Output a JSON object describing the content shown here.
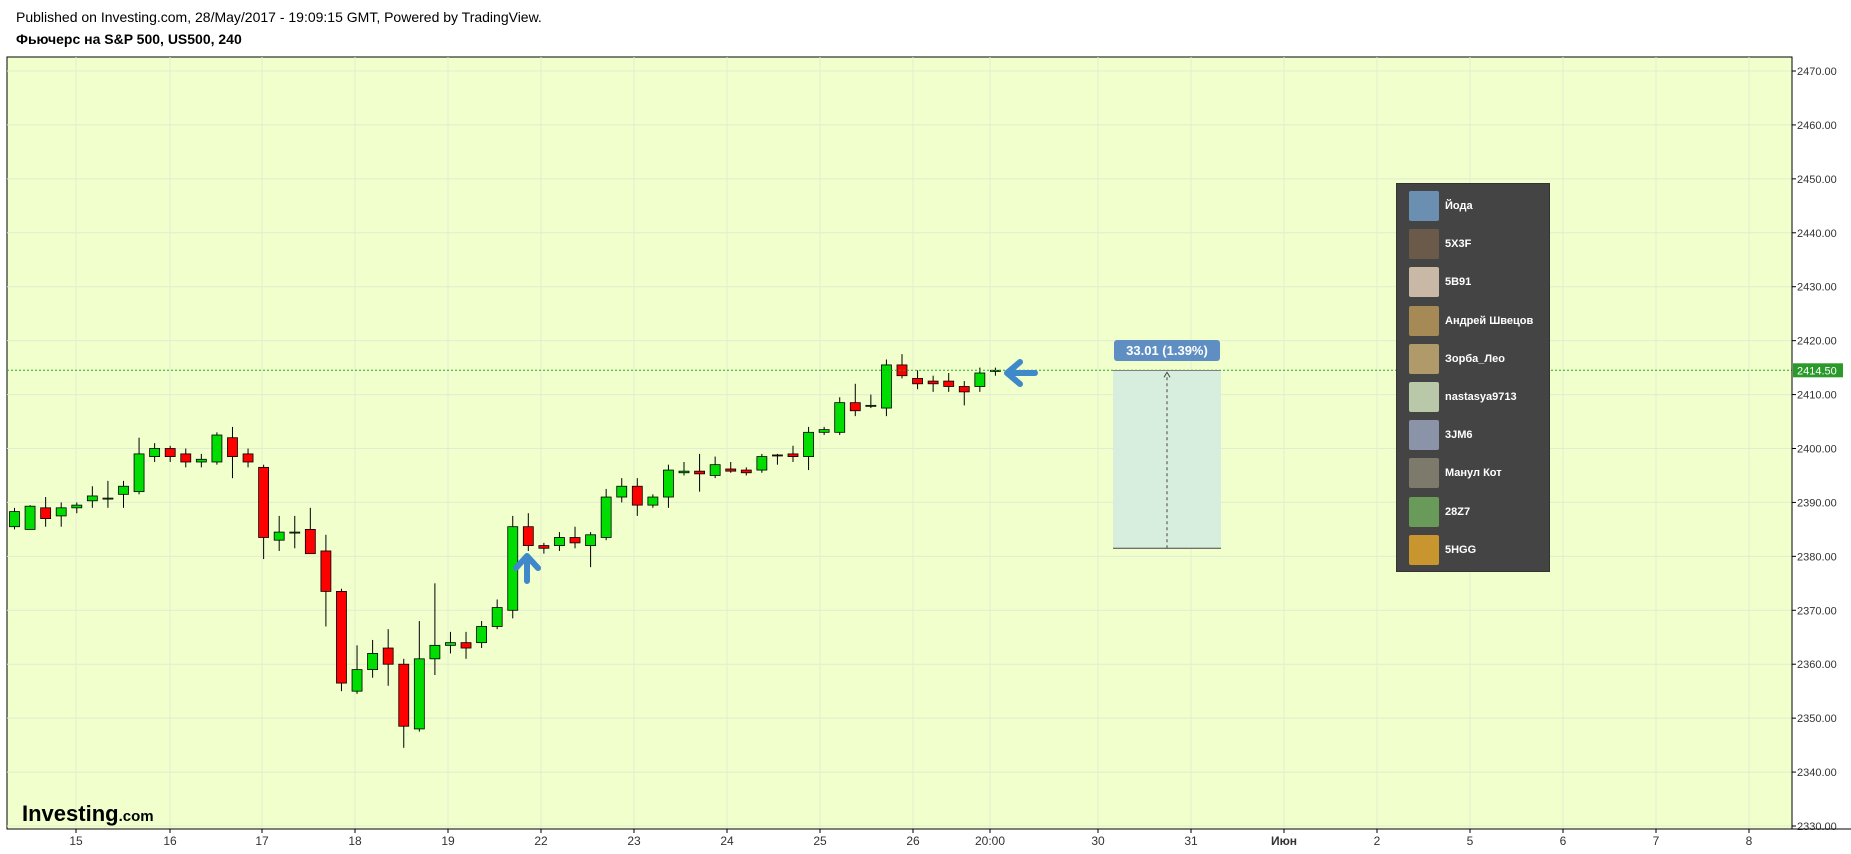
{
  "header": {
    "published": "Published on Investing.com, 28/May/2017 - 19:09:15 GMT, Powered by TradingView.",
    "title": "Фьючерс на S&P 500, US500, 240"
  },
  "colors": {
    "background": "#f0ffcc",
    "up": "#00dd00",
    "down": "#ff0000",
    "price_line": "#22aa22",
    "price_label_bg": "#2a9a2a",
    "measure_fill": "#d7eedf",
    "measure_label_bg": "#5f8fc2",
    "arrow": "#3f88c9"
  },
  "chart_data": {
    "type": "candlestick",
    "y_axis": {
      "ylim": [
        2327,
        2472
      ],
      "ticks": [
        "2470.00",
        "2460.00",
        "2450.00",
        "2440.00",
        "2430.00",
        "2420.00",
        "2410.00",
        "2400.00",
        "2390.00",
        "2380.00",
        "2370.00",
        "2360.00",
        "2350.00",
        "2340.00",
        "2330.00"
      ]
    },
    "x_axis": {
      "ticks": [
        "15",
        "16",
        "17",
        "18",
        "19",
        "22",
        "23",
        "24",
        "25",
        "26",
        "20:00",
        "30",
        "31",
        "Июн",
        "2",
        "5",
        "6",
        "7",
        "8"
      ]
    },
    "current_price": 2414.5,
    "current_price_label": "2414.50",
    "candles": [
      {
        "o": 2385.5,
        "h": 2389.0,
        "l": 2385.0,
        "c": 2388.3
      },
      {
        "o": 2385.0,
        "h": 2389.5,
        "l": 2385.0,
        "c": 2389.3
      },
      {
        "o": 2389.0,
        "h": 2391.0,
        "l": 2385.5,
        "c": 2387.0
      },
      {
        "o": 2387.5,
        "h": 2390.0,
        "l": 2385.5,
        "c": 2389.0
      },
      {
        "o": 2389.0,
        "h": 2390.0,
        "l": 2388.0,
        "c": 2389.5
      },
      {
        "o": 2390.3,
        "h": 2393.0,
        "l": 2389.0,
        "c": 2391.2
      },
      {
        "o": 2390.8,
        "h": 2394.0,
        "l": 2389.0,
        "c": 2390.8
      },
      {
        "o": 2391.5,
        "h": 2394.0,
        "l": 2389.0,
        "c": 2393.0
      },
      {
        "o": 2392.0,
        "h": 2402.0,
        "l": 2391.5,
        "c": 2399.0
      },
      {
        "o": 2398.5,
        "h": 2401.0,
        "l": 2397.5,
        "c": 2400.0
      },
      {
        "o": 2400.0,
        "h": 2400.5,
        "l": 2397.5,
        "c": 2398.5
      },
      {
        "o": 2399.0,
        "h": 2400.0,
        "l": 2396.5,
        "c": 2397.5
      },
      {
        "o": 2397.5,
        "h": 2399.0,
        "l": 2396.5,
        "c": 2398.0
      },
      {
        "o": 2397.5,
        "h": 2403.0,
        "l": 2397.0,
        "c": 2402.5
      },
      {
        "o": 2402.0,
        "h": 2404.0,
        "l": 2394.5,
        "c": 2398.5
      },
      {
        "o": 2399.0,
        "h": 2400.0,
        "l": 2396.5,
        "c": 2397.5
      },
      {
        "o": 2396.5,
        "h": 2397.0,
        "l": 2379.5,
        "c": 2383.5
      },
      {
        "o": 2383.0,
        "h": 2387.5,
        "l": 2381.0,
        "c": 2384.5
      },
      {
        "o": 2384.5,
        "h": 2387.5,
        "l": 2381.5,
        "c": 2384.5
      },
      {
        "o": 2385.0,
        "h": 2389.0,
        "l": 2381.0,
        "c": 2380.5
      },
      {
        "o": 2381.0,
        "h": 2384.0,
        "l": 2367.0,
        "c": 2373.5
      },
      {
        "o": 2373.5,
        "h": 2374.0,
        "l": 2355.0,
        "c": 2356.5
      },
      {
        "o": 2355.0,
        "h": 2363.5,
        "l": 2354.5,
        "c": 2359.0
      },
      {
        "o": 2359.0,
        "h": 2364.5,
        "l": 2357.5,
        "c": 2362.0
      },
      {
        "o": 2363.0,
        "h": 2366.5,
        "l": 2356.0,
        "c": 2360.0
      },
      {
        "o": 2360.0,
        "h": 2361.0,
        "l": 2344.5,
        "c": 2348.5
      },
      {
        "o": 2348.0,
        "h": 2368.0,
        "l": 2347.5,
        "c": 2361.0
      },
      {
        "o": 2361.0,
        "h": 2375.0,
        "l": 2358.0,
        "c": 2363.5
      },
      {
        "o": 2363.5,
        "h": 2366.0,
        "l": 2362.0,
        "c": 2364.0
      },
      {
        "o": 2364.0,
        "h": 2366.0,
        "l": 2361.0,
        "c": 2363.0
      },
      {
        "o": 2364.0,
        "h": 2368.0,
        "l": 2363.0,
        "c": 2367.0
      },
      {
        "o": 2367.0,
        "h": 2372.0,
        "l": 2366.5,
        "c": 2370.5
      },
      {
        "o": 2370.0,
        "h": 2387.5,
        "l": 2368.5,
        "c": 2385.5
      },
      {
        "o": 2385.5,
        "h": 2388.0,
        "l": 2381.0,
        "c": 2382.0
      },
      {
        "o": 2382.0,
        "h": 2382.5,
        "l": 2380.5,
        "c": 2381.5
      },
      {
        "o": 2382.0,
        "h": 2384.5,
        "l": 2381.0,
        "c": 2383.5
      },
      {
        "o": 2383.5,
        "h": 2385.5,
        "l": 2381.5,
        "c": 2382.5
      },
      {
        "o": 2382.0,
        "h": 2384.5,
        "l": 2378.0,
        "c": 2384.0
      },
      {
        "o": 2383.5,
        "h": 2392.5,
        "l": 2383.0,
        "c": 2391.0
      },
      {
        "o": 2391.0,
        "h": 2394.5,
        "l": 2390.0,
        "c": 2393.0
      },
      {
        "o": 2393.0,
        "h": 2394.5,
        "l": 2387.5,
        "c": 2389.5
      },
      {
        "o": 2389.5,
        "h": 2391.5,
        "l": 2389.0,
        "c": 2391.0
      },
      {
        "o": 2391.0,
        "h": 2397.0,
        "l": 2389.0,
        "c": 2396.0
      },
      {
        "o": 2395.5,
        "h": 2397.5,
        "l": 2395.0,
        "c": 2395.8
      },
      {
        "o": 2395.8,
        "h": 2399.0,
        "l": 2392.0,
        "c": 2395.3
      },
      {
        "o": 2395.0,
        "h": 2398.5,
        "l": 2394.5,
        "c": 2397.0
      },
      {
        "o": 2396.2,
        "h": 2397.5,
        "l": 2395.5,
        "c": 2395.8
      },
      {
        "o": 2396.0,
        "h": 2396.5,
        "l": 2395.0,
        "c": 2395.5
      },
      {
        "o": 2396.0,
        "h": 2399.0,
        "l": 2395.5,
        "c": 2398.5
      },
      {
        "o": 2398.8,
        "h": 2399.0,
        "l": 2397.0,
        "c": 2398.7
      },
      {
        "o": 2399.0,
        "h": 2400.5,
        "l": 2397.5,
        "c": 2398.5
      },
      {
        "o": 2398.5,
        "h": 2404.0,
        "l": 2396.0,
        "c": 2403.0
      },
      {
        "o": 2403.0,
        "h": 2404.0,
        "l": 2402.5,
        "c": 2403.5
      },
      {
        "o": 2403.0,
        "h": 2409.5,
        "l": 2402.5,
        "c": 2408.5
      },
      {
        "o": 2408.5,
        "h": 2412.0,
        "l": 2406.0,
        "c": 2407.0
      },
      {
        "o": 2408.0,
        "h": 2410.0,
        "l": 2407.5,
        "c": 2408.0
      },
      {
        "o": 2407.5,
        "h": 2416.5,
        "l": 2406.0,
        "c": 2415.5
      },
      {
        "o": 2415.5,
        "h": 2417.5,
        "l": 2413.0,
        "c": 2413.5
      },
      {
        "o": 2413.0,
        "h": 2414.5,
        "l": 2411.0,
        "c": 2412.0
      },
      {
        "o": 2412.5,
        "h": 2413.5,
        "l": 2410.5,
        "c": 2412.0
      },
      {
        "o": 2412.5,
        "h": 2414.0,
        "l": 2410.5,
        "c": 2411.5
      },
      {
        "o": 2411.5,
        "h": 2412.5,
        "l": 2408.0,
        "c": 2410.5
      },
      {
        "o": 2411.5,
        "h": 2415.0,
        "l": 2410.5,
        "c": 2414.0
      },
      {
        "o": 2414.3,
        "h": 2415.0,
        "l": 2413.5,
        "c": 2414.5
      }
    ],
    "measure": {
      "label": "33.01 (1.39%)",
      "top": 2414.5,
      "bottom": 2381.5
    },
    "logo": {
      "main": "Investing",
      "suffix": ".com"
    }
  },
  "chat": {
    "users": [
      {
        "name": "Йода",
        "color": "#6a8fb0"
      },
      {
        "name": "5X3F",
        "color": "#6b5a4a"
      },
      {
        "name": "5B91",
        "color": "#c9b8a5"
      },
      {
        "name": "Андрей Швецов",
        "color": "#a58a55"
      },
      {
        "name": "Зорба_Лео",
        "color": "#b09a6a"
      },
      {
        "name": "nastasya9713",
        "color": "#b8c8a8"
      },
      {
        "name": "3JM6",
        "color": "#8a93a8"
      },
      {
        "name": "Манул Кот",
        "color": "#7d7a6c"
      },
      {
        "name": "28Z7",
        "color": "#6a9a5a"
      },
      {
        "name": "5HGG",
        "color": "#c8952e"
      }
    ]
  }
}
